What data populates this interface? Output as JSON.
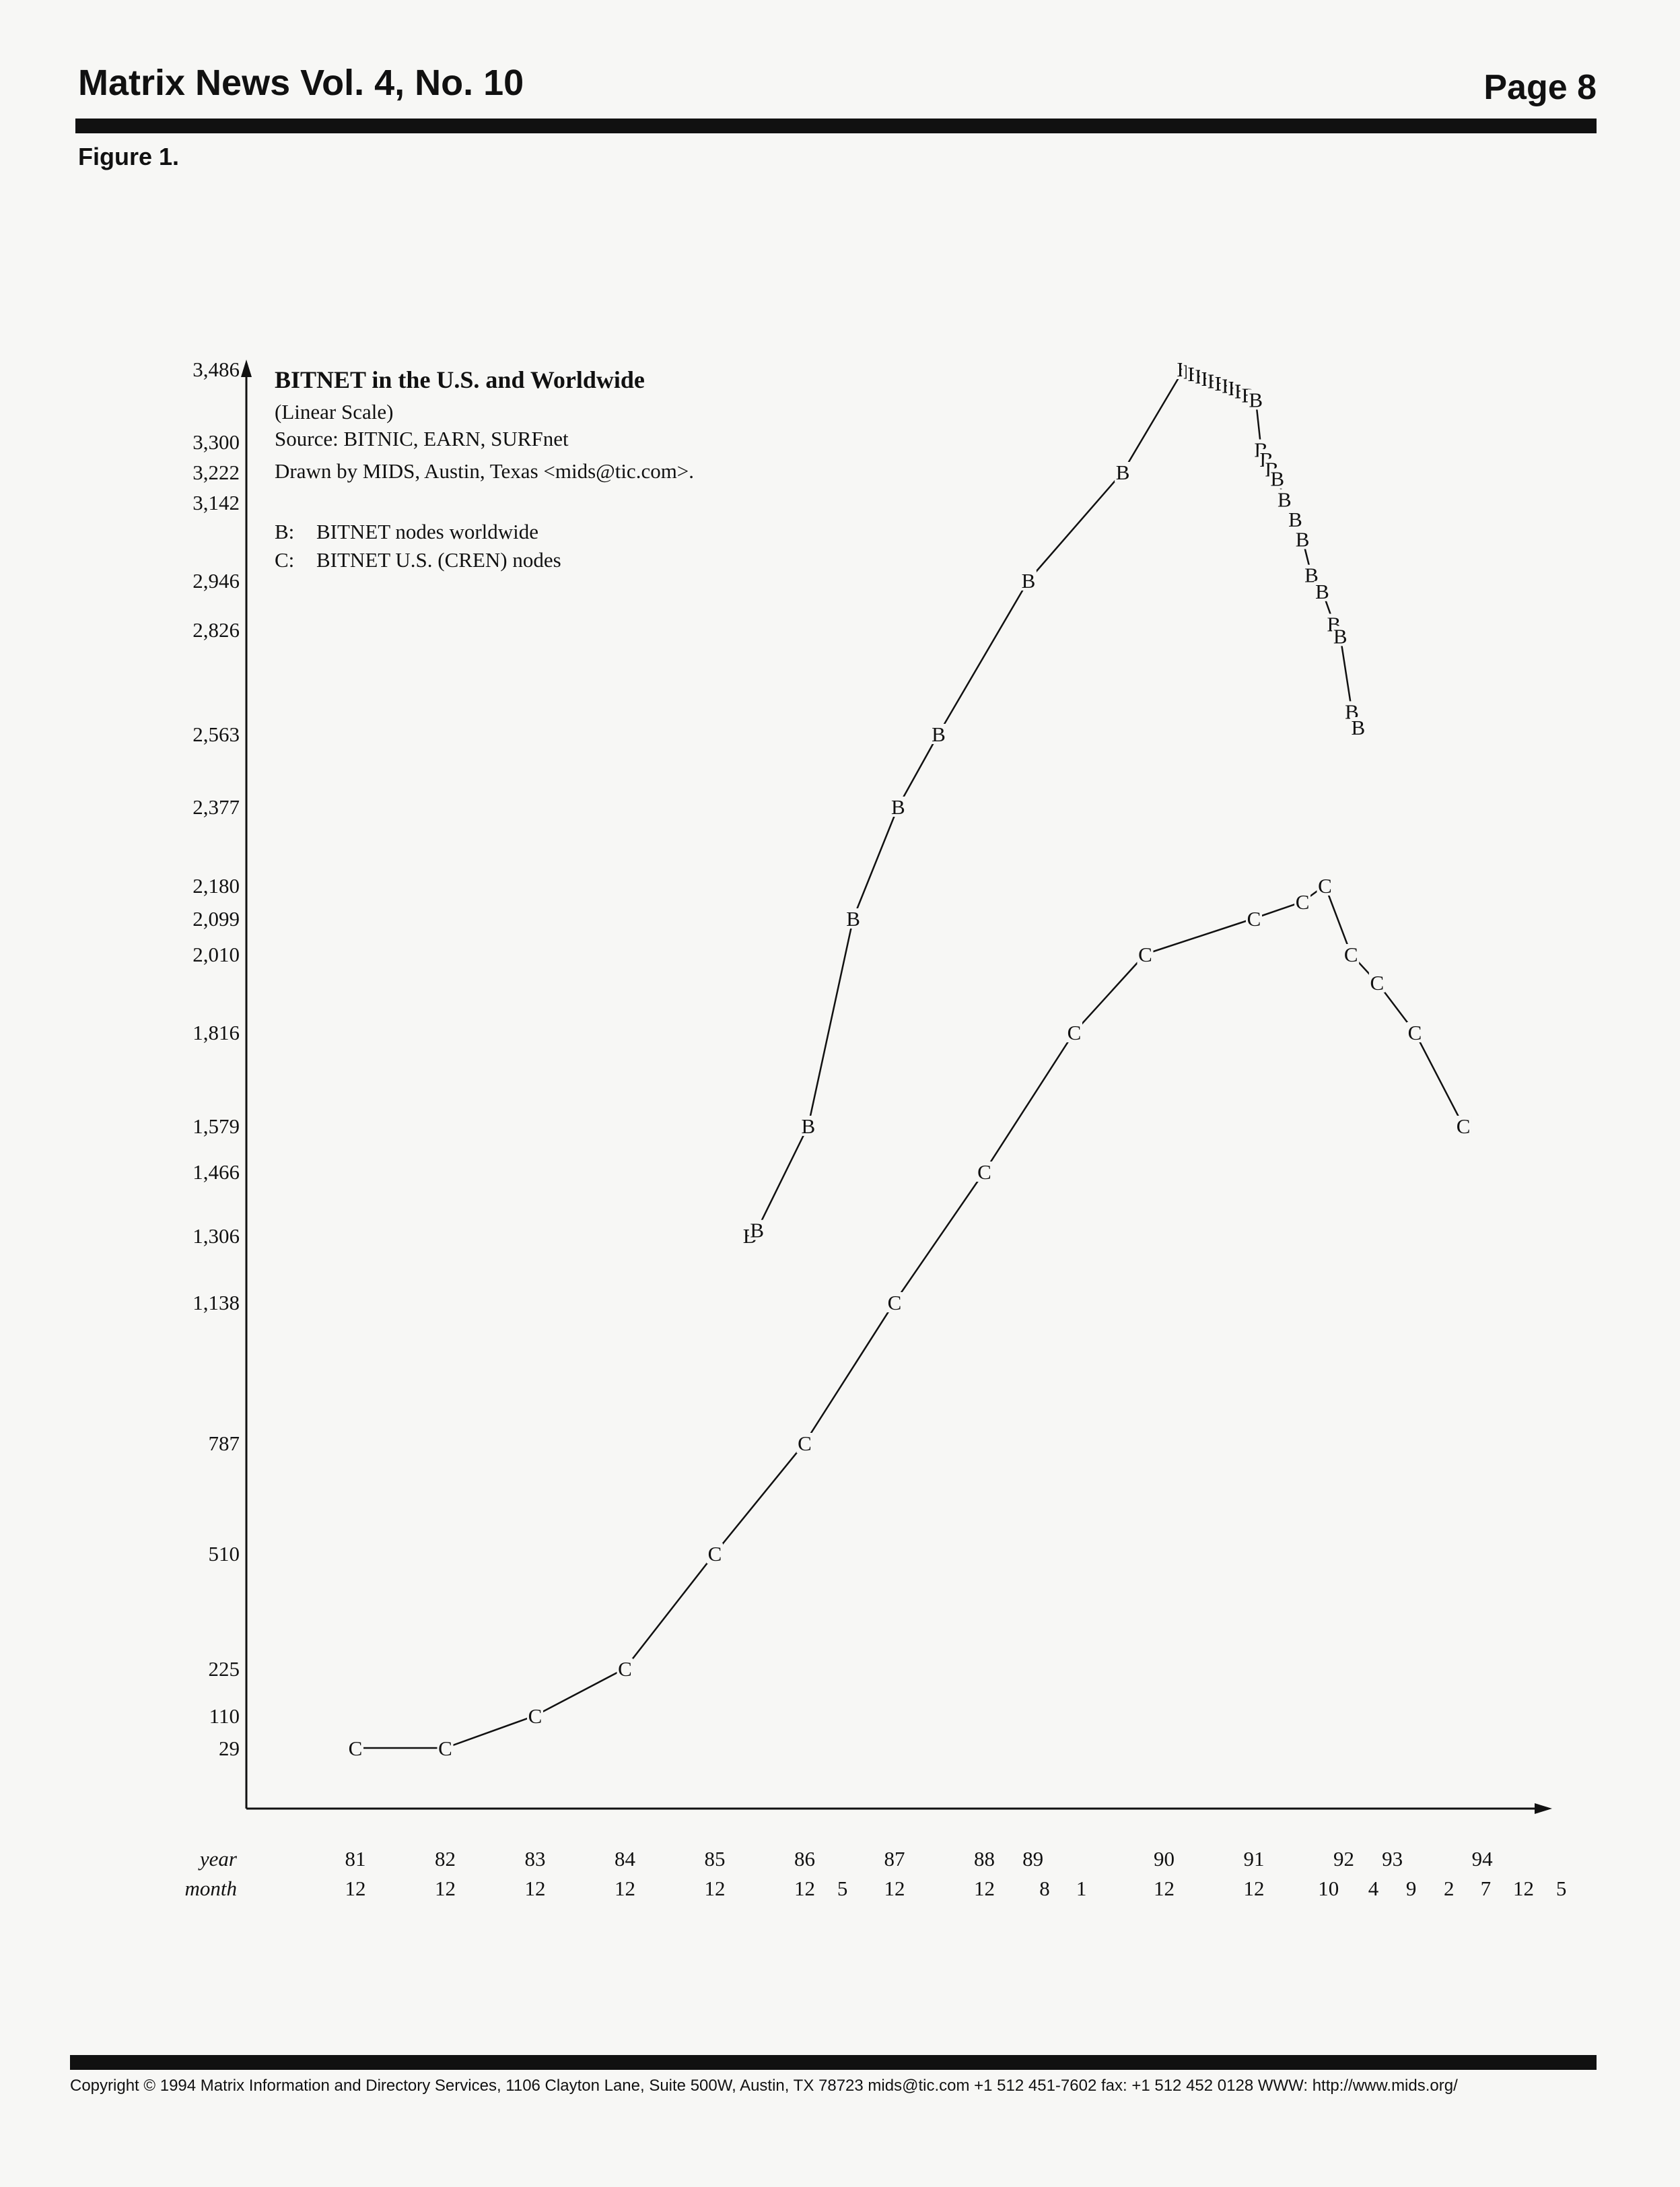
{
  "header": {
    "title": "Matrix News Vol. 4, No. 10",
    "page": "Page 8"
  },
  "figure_label": "Figure 1.",
  "footer": {
    "text": "Copyright  © 1994 Matrix Information and Directory Services, 1106 Clayton Lane, Suite 500W, Austin, TX 78723 mids@tic.com +1 512 451-7602  fax: +1 512 452 0128  WWW: http://www.mids.org/"
  },
  "chart_data": {
    "type": "line",
    "title": "BITNET in the U.S. and Worldwide",
    "subtitle_lines": [
      "(Linear Scale)",
      "Source: BITNIC, EARN, SURFnet",
      "Drawn by MIDS, Austin, Texas <mids@tic.com>."
    ],
    "legend": [
      {
        "key": "B:",
        "label": "BITNET nodes worldwide"
      },
      {
        "key": "C:",
        "label": "BITNET U.S. (CREN) nodes"
      }
    ],
    "y_ticks": [
      3486,
      3300,
      3222,
      3142,
      2946,
      2826,
      2563,
      2377,
      2180,
      2099,
      2010,
      1816,
      1579,
      1466,
      1306,
      1138,
      787,
      510,
      225,
      110,
      29
    ],
    "ylim": [
      0,
      3486
    ],
    "x_axis": {
      "row_labels": {
        "year": "year",
        "month": "month"
      },
      "years": [
        {
          "label": "81",
          "t": 1981.96
        },
        {
          "label": "82",
          "t": 1982.96
        },
        {
          "label": "83",
          "t": 1983.96
        },
        {
          "label": "84",
          "t": 1984.96
        },
        {
          "label": "85",
          "t": 1985.96
        },
        {
          "label": "86",
          "t": 1986.96
        },
        {
          "label": "87",
          "t": 1987.96
        },
        {
          "label": "88",
          "t": 1988.96
        },
        {
          "label": "89",
          "t": 1989.5
        },
        {
          "label": "90",
          "t": 1990.96
        },
        {
          "label": "91",
          "t": 1991.96
        },
        {
          "label": "92",
          "t": 1992.96
        },
        {
          "label": "93",
          "t": 1993.5
        },
        {
          "label": "94",
          "t": 1994.5
        }
      ],
      "months": [
        {
          "label": "12",
          "t": 1981.96
        },
        {
          "label": "12",
          "t": 1982.96
        },
        {
          "label": "12",
          "t": 1983.96
        },
        {
          "label": "12",
          "t": 1984.96
        },
        {
          "label": "12",
          "t": 1985.96
        },
        {
          "label": "12",
          "t": 1986.96
        },
        {
          "label": "5",
          "t": 1987.38
        },
        {
          "label": "12",
          "t": 1987.96
        },
        {
          "label": "12",
          "t": 1988.96
        },
        {
          "label": "8",
          "t": 1989.63
        },
        {
          "label": "1",
          "t": 1990.04
        },
        {
          "label": "12",
          "t": 1990.96
        },
        {
          "label": "12",
          "t": 1991.96
        },
        {
          "label": "10",
          "t": 1992.79
        },
        {
          "label": "4",
          "t": 1993.29
        },
        {
          "label": "9",
          "t": 1993.71
        },
        {
          "label": "2",
          "t": 1994.13
        },
        {
          "label": "7",
          "t": 1994.54
        },
        {
          "label": "12",
          "t": 1994.96
        },
        {
          "label": "5",
          "t": 1995.38
        }
      ]
    },
    "series": [
      {
        "marker": "B",
        "label": "BITNET nodes worldwide",
        "points": [
          [
            1986.35,
            1306
          ],
          [
            1986.43,
            1320
          ],
          [
            1987.0,
            1579
          ],
          [
            1987.5,
            2099
          ],
          [
            1988.0,
            2377
          ],
          [
            1988.45,
            2563
          ],
          [
            1989.45,
            2946
          ],
          [
            1990.5,
            3222
          ],
          [
            1991.18,
            3486
          ],
          [
            1991.25,
            3480
          ],
          [
            1991.3,
            3474
          ],
          [
            1991.38,
            3468
          ],
          [
            1991.45,
            3462
          ],
          [
            1991.52,
            3456
          ],
          [
            1991.6,
            3450
          ],
          [
            1991.68,
            3444
          ],
          [
            1991.75,
            3438
          ],
          [
            1991.82,
            3430
          ],
          [
            1991.9,
            3420
          ],
          [
            1991.98,
            3408
          ],
          [
            1992.04,
            3280
          ],
          [
            1992.1,
            3255
          ],
          [
            1992.16,
            3230
          ],
          [
            1992.22,
            3205
          ],
          [
            1992.3,
            3150
          ],
          [
            1992.42,
            3100
          ],
          [
            1992.5,
            3050
          ],
          [
            1992.6,
            2960
          ],
          [
            1992.72,
            2920
          ],
          [
            1992.85,
            2840
          ],
          [
            1992.92,
            2810
          ],
          [
            1993.05,
            2620
          ],
          [
            1993.12,
            2580
          ]
        ]
      },
      {
        "marker": "C",
        "label": "BITNET U.S. (CREN) nodes",
        "points": [
          [
            1981.96,
            29
          ],
          [
            1982.96,
            29
          ],
          [
            1983.96,
            110
          ],
          [
            1984.96,
            225
          ],
          [
            1985.96,
            510
          ],
          [
            1986.96,
            787
          ],
          [
            1987.96,
            1138
          ],
          [
            1988.96,
            1466
          ],
          [
            1989.96,
            1816
          ],
          [
            1990.75,
            2010
          ],
          [
            1991.96,
            2099
          ],
          [
            1992.5,
            2140
          ],
          [
            1992.75,
            2180
          ],
          [
            1993.04,
            2010
          ],
          [
            1993.33,
            1940
          ],
          [
            1993.75,
            1816
          ],
          [
            1994.29,
            1579
          ]
        ]
      }
    ]
  }
}
